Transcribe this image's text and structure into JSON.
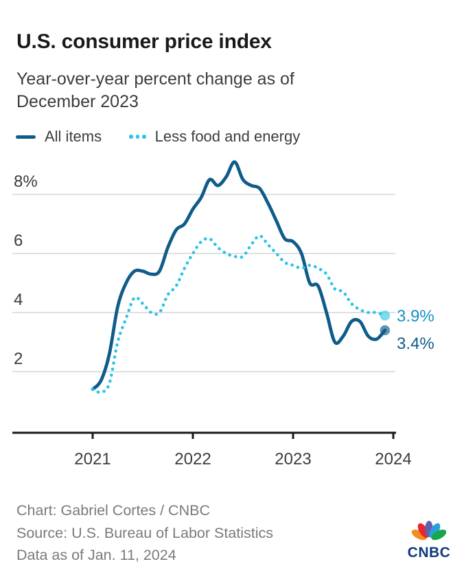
{
  "header": {
    "title": "U.S. consumer price index",
    "subtitle_line1": "Year-over-year percent change as of",
    "subtitle_line2": "December 2023"
  },
  "legend": [
    {
      "label": "All items",
      "color": "#0f5c8a",
      "style": "solid"
    },
    {
      "label": "Less food and energy",
      "color": "#29c5e8",
      "style": "dotted"
    }
  ],
  "chart_data": {
    "type": "line",
    "title": "U.S. consumer price index",
    "subtitle": "Year-over-year percent change as of December 2023",
    "x": [
      "2021-01",
      "2021-02",
      "2021-03",
      "2021-04",
      "2021-05",
      "2021-06",
      "2021-07",
      "2021-08",
      "2021-09",
      "2021-10",
      "2021-11",
      "2021-12",
      "2022-01",
      "2022-02",
      "2022-03",
      "2022-04",
      "2022-05",
      "2022-06",
      "2022-07",
      "2022-08",
      "2022-09",
      "2022-10",
      "2022-11",
      "2022-12",
      "2023-01",
      "2023-02",
      "2023-03",
      "2023-04",
      "2023-05",
      "2023-06",
      "2023-07",
      "2023-08",
      "2023-09",
      "2023-10",
      "2023-11",
      "2023-12"
    ],
    "series": [
      {
        "id": "all-items",
        "name": "All items",
        "style": "solid",
        "color": "#0f5c8a",
        "values": [
          1.4,
          1.7,
          2.6,
          4.2,
          5.0,
          5.4,
          5.4,
          5.3,
          5.4,
          6.2,
          6.8,
          7.0,
          7.5,
          7.9,
          8.5,
          8.3,
          8.6,
          9.1,
          8.5,
          8.3,
          8.2,
          7.7,
          7.1,
          6.5,
          6.4,
          6.0,
          5.0,
          4.9,
          4.0,
          3.0,
          3.2,
          3.7,
          3.7,
          3.2,
          3.1,
          3.4
        ],
        "end_label": "3.4%",
        "end_label_color": "#0f5c8a",
        "end_label_dy": 27,
        "marker_color": "#0f5c8a",
        "marker_opacity": 0.66
      },
      {
        "id": "less-food-energy",
        "name": "Less food and energy",
        "style": "dotted",
        "color": "#29c5e8",
        "values": [
          1.4,
          1.3,
          1.6,
          3.0,
          3.8,
          4.5,
          4.3,
          4.0,
          4.0,
          4.6,
          4.9,
          5.5,
          6.0,
          6.4,
          6.5,
          6.2,
          6.0,
          5.9,
          5.9,
          6.3,
          6.6,
          6.3,
          6.0,
          5.7,
          5.6,
          5.5,
          5.6,
          5.5,
          5.3,
          4.8,
          4.7,
          4.3,
          4.1,
          4.0,
          4.0,
          3.9
        ],
        "end_label": "3.9%",
        "end_label_color": "#1791c1",
        "end_label_dy": 8.5,
        "marker_color": "#29c5e8",
        "marker_opacity": 0.62
      }
    ],
    "y_ticks": [
      {
        "value": 8,
        "label": "8%"
      },
      {
        "value": 6,
        "label": "6"
      },
      {
        "value": 4,
        "label": "4"
      },
      {
        "value": 2,
        "label": "2"
      }
    ],
    "x_ticks": [
      "2021",
      "2022",
      "2023",
      "2024"
    ],
    "ylim": [
      0,
      9.3
    ],
    "grid": true,
    "legend_position": "top",
    "colors": {
      "grid": "#d5d5d5",
      "axis": "#1a1a1a",
      "axis_text": "#3c3c3c"
    },
    "layout": {
      "x0": 135,
      "x1": 573,
      "months": 36,
      "plot_left": 18,
      "plot_right": 576,
      "axis_y": 400,
      "y_zero": 397,
      "y_unit": 43,
      "label_x": 578,
      "tick_len": 9,
      "tick_label_y": 446
    }
  },
  "footer": {
    "credit": "Chart: Gabriel Cortes / CNBC",
    "source": "Source: U.S. Bureau of Labor Statistics",
    "as_of": "Data as of Jan. 11, 2024",
    "logo_text": "CNBC",
    "logo_color": "#0e3a7c",
    "peacock_colors": [
      "#f68b1f",
      "#e8262d",
      "#6460aa",
      "#2a9fd8",
      "#15a84b"
    ]
  }
}
